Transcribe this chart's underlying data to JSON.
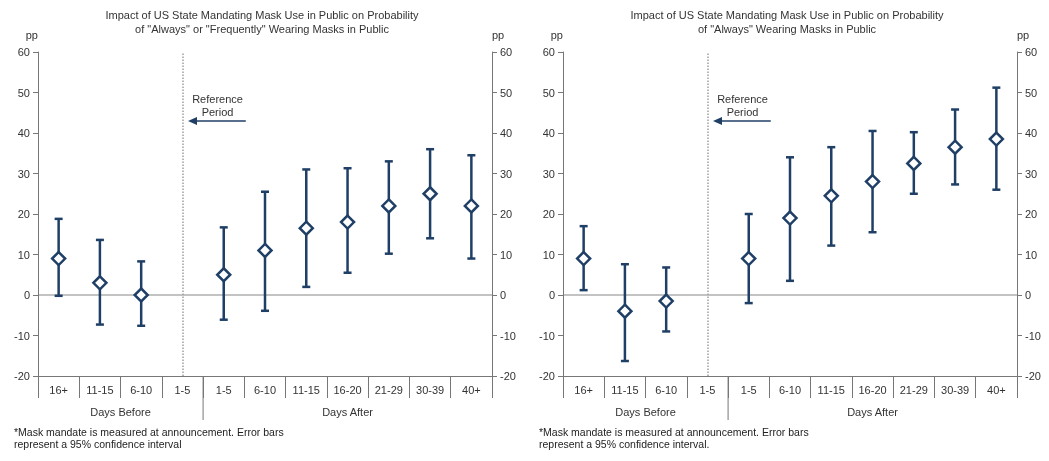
{
  "chart_data": [
    {
      "type": "scatter",
      "title": "Impact of US State Mandating Mask Use in Public on Probability\nof \"Always\" or \"Frequently\" Wearing Masks in Public",
      "ylabel": "pp",
      "y2label": "pp",
      "categories": [
        "16+",
        "11-15",
        "6-10",
        "1-5",
        "1-5",
        "6-10",
        "11-15",
        "16-20",
        "21-29",
        "30-39",
        "40+"
      ],
      "series": [
        {
          "color": "#1f3f66",
          "values": [
            9,
            3,
            0,
            null,
            5,
            11,
            16.5,
            18,
            22,
            25,
            22
          ],
          "errors": [
            [
              -0.2,
              18.8
            ],
            [
              -7.3,
              13.6
            ],
            [
              -7.6,
              8.3
            ],
            null,
            [
              -6.1,
              16.7
            ],
            [
              -3.9,
              25.5
            ],
            [
              2,
              31
            ],
            [
              5.5,
              31.3
            ],
            [
              10.2,
              33
            ],
            [
              14,
              36
            ],
            [
              9,
              34.5
            ]
          ]
        }
      ],
      "marker": "diamond",
      "ylim": [
        -20,
        60
      ],
      "yticks": [
        -20,
        -10,
        0,
        10,
        20,
        30,
        40,
        50,
        60
      ],
      "y2lim": [
        -20,
        60
      ],
      "y2ticks": [
        -20,
        -10,
        0,
        10,
        20,
        30,
        40,
        50,
        60
      ],
      "grid": false,
      "ref_lines": [
        {
          "axis": "x",
          "value": "1-5",
          "label": "Reference\nPeriod",
          "color": "#a0a0a0",
          "line_style": "dotted"
        }
      ],
      "annotations": [
        "Days Before",
        "Days After",
        "*Mask mandate is measured at announcement. Error bars represent a 95% confidence interval"
      ]
    },
    {
      "type": "scatter",
      "title": "Impact of US State Mandating Mask Use in Public on Probability\nof \"Always\" Wearing Masks in Public",
      "ylabel": "pp",
      "y2label": "pp",
      "categories": [
        "16+",
        "11-15",
        "6-10",
        "1-5",
        "1-5",
        "6-10",
        "11-15",
        "16-20",
        "21-29",
        "30-39",
        "40+"
      ],
      "series": [
        {
          "color": "#1f3f66",
          "values": [
            9,
            -4,
            -1.5,
            null,
            9,
            19,
            24.5,
            28,
            32.5,
            36.5,
            38.5
          ],
          "errors": [
            [
              1.2,
              17
            ],
            [
              -16.3,
              7.6
            ],
            [
              -9,
              6.8
            ],
            null,
            [
              -2,
              20
            ],
            [
              3.5,
              34
            ],
            [
              12.2,
              36.5
            ],
            [
              15.5,
              40.5
            ],
            [
              25,
              40.2
            ],
            [
              27.3,
              45.8
            ],
            [
              26,
              51.2
            ]
          ]
        }
      ],
      "marker": "diamond",
      "ylim": [
        -20,
        60
      ],
      "yticks": [
        -20,
        -10,
        0,
        10,
        20,
        30,
        40,
        50,
        60
      ],
      "y2lim": [
        -20,
        60
      ],
      "y2ticks": [
        -20,
        -10,
        0,
        10,
        20,
        30,
        40,
        50,
        60
      ],
      "grid": false,
      "ref_lines": [
        {
          "axis": "x",
          "value": "1-5",
          "label": "Reference\nPeriod",
          "color": "#a0a0a0",
          "line_style": "dotted"
        }
      ],
      "annotations": [
        "Days Before",
        "Days After",
        "*Mask mandate is measured at announcement. Error bars represent a 95% confidence interval."
      ]
    }
  ]
}
